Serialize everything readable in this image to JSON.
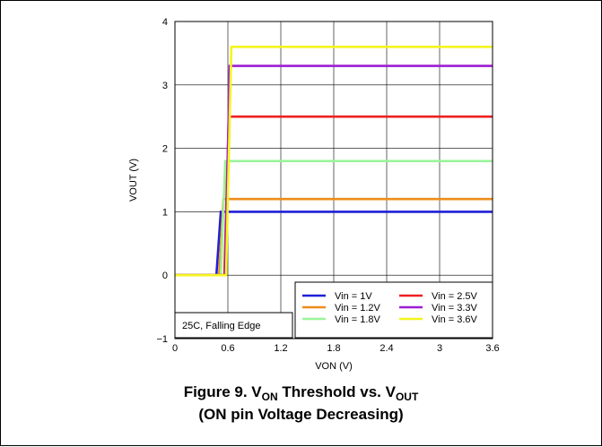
{
  "chart_data": {
    "type": "line",
    "xlabel": "VON (V)",
    "ylabel": "VOUT (V)",
    "xlim": [
      0,
      3.6
    ],
    "ylim": [
      -1,
      4
    ],
    "x_ticks": [
      "0",
      "0.6",
      "1.2",
      "1.8",
      "2.4",
      "3",
      "3.6"
    ],
    "y_ticks": [
      "4",
      "3",
      "2",
      "1",
      "0",
      "−1"
    ],
    "grid": true,
    "legend_position": "bottom-right",
    "annotation": "25C, Falling Edge",
    "figure_id": "G009",
    "series": [
      {
        "name": "Vin = 1V",
        "color": "#1f1fd6",
        "x": [
          0,
          0.47,
          0.52,
          0.6,
          3.6
        ],
        "y": [
          0,
          0,
          1.0,
          1.0,
          1.0
        ]
      },
      {
        "name": "Vin = 1.2V",
        "color": "#ee8c1a",
        "x": [
          0,
          0.5,
          0.55,
          0.6,
          3.6
        ],
        "y": [
          0,
          0,
          1.2,
          1.2,
          1.2
        ]
      },
      {
        "name": "Vin = 1.8V",
        "color": "#99f499",
        "x": [
          0,
          0.52,
          0.57,
          0.6,
          3.6
        ],
        "y": [
          0,
          0,
          1.8,
          1.8,
          1.8
        ]
      },
      {
        "name": "Vin = 2.5V",
        "color": "#ee2020",
        "x": [
          0,
          0.56,
          0.61,
          0.65,
          3.6
        ],
        "y": [
          0,
          0,
          2.5,
          2.5,
          2.5
        ]
      },
      {
        "name": "Vin = 3.3V",
        "color": "#9c1ed2",
        "x": [
          0,
          0.57,
          0.62,
          0.65,
          3.6
        ],
        "y": [
          0,
          0,
          3.3,
          3.3,
          3.3
        ]
      },
      {
        "name": "Vin = 3.6V",
        "color": "#f4f41e",
        "x": [
          0,
          0.58,
          0.64,
          0.68,
          3.6
        ],
        "y": [
          0,
          0,
          3.6,
          3.6,
          3.6
        ]
      }
    ]
  },
  "caption": {
    "line1_prefix": "Figure 9. V",
    "line1_sub1": "ON",
    "line1_mid": " Threshold vs. V",
    "line1_sub2": "OUT",
    "line2": "(ON pin Voltage Decreasing)"
  }
}
